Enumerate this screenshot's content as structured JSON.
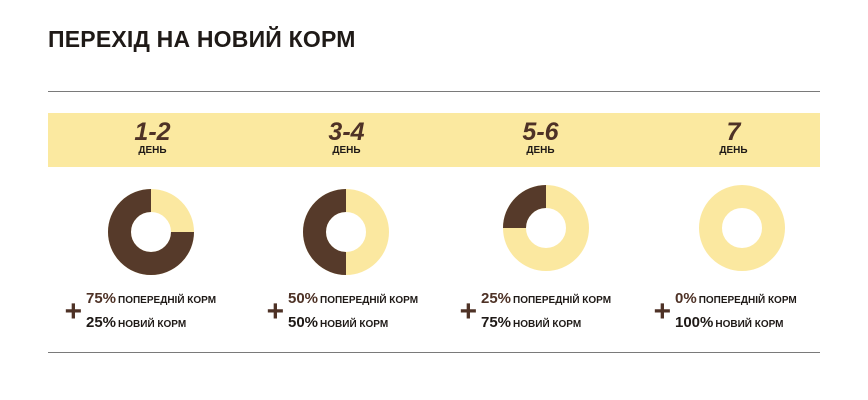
{
  "title": "ПЕРЕХІД НА НОВИЙ КОРМ",
  "colors": {
    "previous": "#563a2a",
    "new": "#fbe8a0",
    "band": "#fbe9a0"
  },
  "chart_data": {
    "type": "pie",
    "categories": [
      "1-2",
      "3-4",
      "5-6",
      "7"
    ],
    "day_label": "ДЕНЬ",
    "series": [
      {
        "name": "ПОПЕРЕДНІЙ КОРМ",
        "values": [
          75,
          50,
          25,
          0
        ],
        "labels": [
          "75%",
          "50%",
          "25%",
          "0%"
        ]
      },
      {
        "name": "НОВИЙ КОРМ",
        "values": [
          25,
          50,
          75,
          100
        ],
        "labels": [
          "25%",
          "50%",
          "75%",
          "100%"
        ]
      }
    ],
    "plus": "+"
  }
}
